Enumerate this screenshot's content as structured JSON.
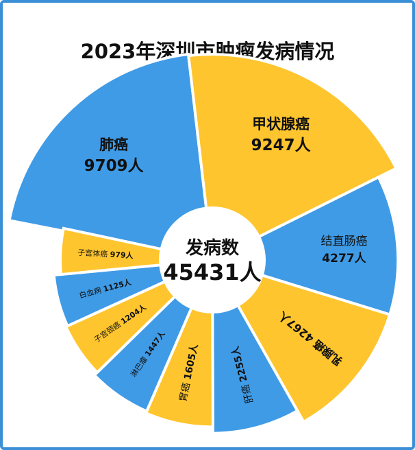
{
  "title": "2023年深圳市肿瘤发病情况",
  "center": {
    "label": "发病数",
    "total": "45431人"
  },
  "colors": {
    "blue": "#3f9be6",
    "yellow": "#ffc52e",
    "frame": "#3a8fd6"
  },
  "chart_data": {
    "type": "pie",
    "title": "2023年深圳市肿瘤发病情况",
    "unit": "人",
    "total": 45431,
    "categories": [
      "肺癌",
      "甲状腺癌",
      "结直肠癌",
      "乳腺癌",
      "肝癌",
      "胃癌",
      "淋巴瘤",
      "子宫颈癌",
      "白血病",
      "子宫体癌"
    ],
    "values": [
      9709,
      9247,
      4277,
      4267,
      2255,
      1605,
      1447,
      1204,
      1125,
      979
    ],
    "labels": [
      "9709人",
      "9247人",
      "4277人",
      "4267人",
      "2255人",
      "1605人",
      "1447人",
      "1204人",
      "1125人",
      "979人"
    ]
  }
}
